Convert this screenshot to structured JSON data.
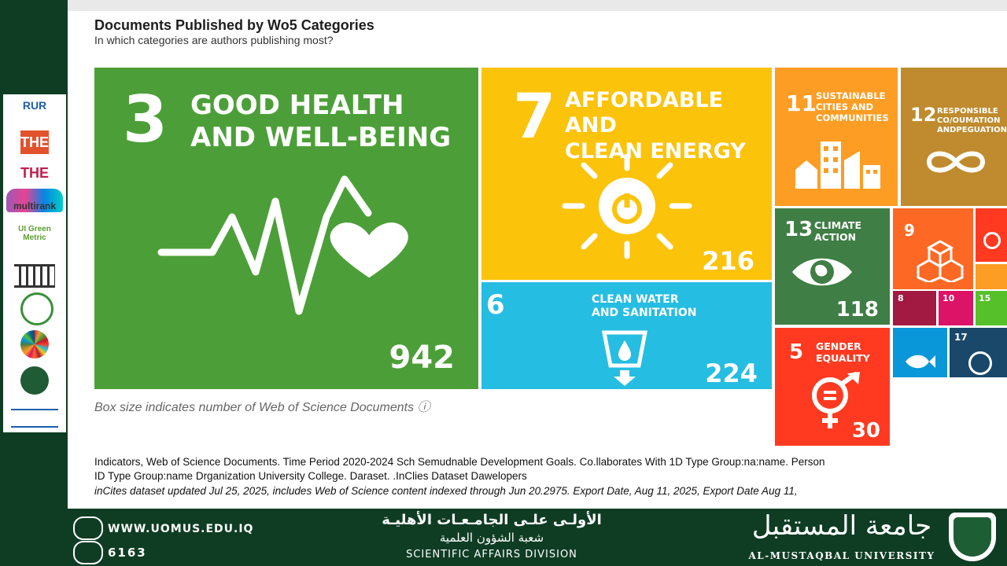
{
  "header": {
    "title": "Documents Published by Wo5 Categories",
    "subtitle": "In which categories are authors publishing most?"
  },
  "logos": [
    "RUR",
    "THE",
    "THE",
    "multirank",
    "UI Green Metric"
  ],
  "chart_data": {
    "type": "treemap",
    "title": "Documents Published by Wo5 Categories",
    "subtitle": "In which categories are authors publishing most?",
    "items": [
      {
        "goal": "3",
        "label": "GOOD HEALTH\nAND WELL-BEING",
        "value": 942,
        "color": "#4c9f38"
      },
      {
        "goal": "7",
        "label": "AFFORDABLE AND\nCLEAN ENERGY",
        "value": 216,
        "color": "#fcc30b"
      },
      {
        "goal": "6",
        "label": "CLEAN WATER\nAND SANITATION",
        "value": 224,
        "color": "#26bde2"
      },
      {
        "goal": "11",
        "label": "SUSTAINABLE\nCITIES AND\nCOMMUNITIES",
        "value": null,
        "color": "#fd9d24"
      },
      {
        "goal": "12",
        "label": "RESPONSIBLE\nCO/OUMATION\nANDPEGUATION",
        "value": null,
        "color": "#bf8b2e"
      },
      {
        "goal": "13",
        "label": "CLIMATE\nACTION",
        "value": 118,
        "color": "#3f7e44"
      },
      {
        "goal": "9",
        "label": "",
        "value": null,
        "color": "#fd6925"
      },
      {
        "goal": "5",
        "label": "GENDER\nEQUALITY",
        "value": 30,
        "color": "#ff3a21"
      },
      {
        "goal": "8",
        "label": "",
        "value": null,
        "color": "#a21942"
      },
      {
        "goal": "10",
        "label": "",
        "value": null,
        "color": "#dd1367"
      },
      {
        "goal": "15",
        "label": "",
        "value": null,
        "color": "#56c02b"
      },
      {
        "goal": "14",
        "label": "",
        "value": null,
        "color": "#0a97d9"
      },
      {
        "goal": "17",
        "label": "",
        "value": null,
        "color": "#19486a"
      }
    ]
  },
  "note": "Box size indicates number of Web of Science Documents ⓘ",
  "footer": {
    "line1": "Indicators, Web of Science Documents. Time Period 2020-2024 Sch Semudnable Development Goals.   Co.llaborates With 1D Type Group:na:name. Person",
    "line2": "ID Type Group:name Drganization University College. Daraset. .InClies Dataset Dawelopers",
    "line3": "inCites dataset updated Jul 25, 2025, includes Web of Science content indexed through Jun 20.2975. Export Date, Aug 11, 2025, Export Date  Aug 11,"
  },
  "bottom": {
    "website": "WWW.UOMUS.EDU.IQ",
    "phone": "6163",
    "arabic_line1": "الأولـى علـى الجامـعـات الأهليـة",
    "arabic_line2": "شعبة الشؤون العلمية",
    "division": "SCIENTIFIC AFFAIRS DIVISION",
    "uni_arabic": "جامعة المستقبل",
    "uni_english": "AL-MUSTAQBAL UNIVERSITY",
    "colors": {
      "bar": "#0f3d24"
    }
  }
}
